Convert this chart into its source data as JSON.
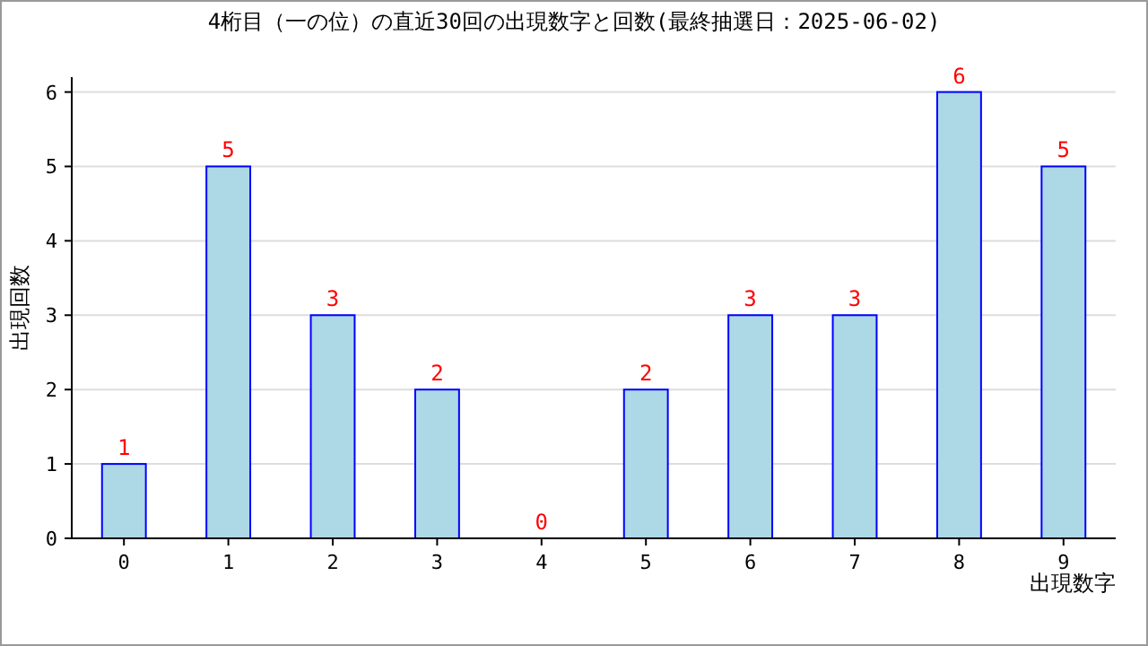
{
  "chart_data": {
    "type": "bar",
    "title": "4桁目（一の位）の直近30回の出現数字と回数(最終抽選日：2025-06-02)",
    "xlabel": "出現数字",
    "ylabel": "出現回数",
    "categories": [
      "0",
      "1",
      "2",
      "3",
      "4",
      "5",
      "6",
      "7",
      "8",
      "9"
    ],
    "values": [
      1,
      5,
      3,
      2,
      0,
      2,
      3,
      3,
      6,
      5
    ],
    "color": "#add8e6",
    "ylim": [
      0,
      6.2
    ],
    "yticks": [
      0,
      1,
      2,
      3,
      4,
      5,
      6
    ],
    "grid": "y",
    "data_labels": true
  }
}
